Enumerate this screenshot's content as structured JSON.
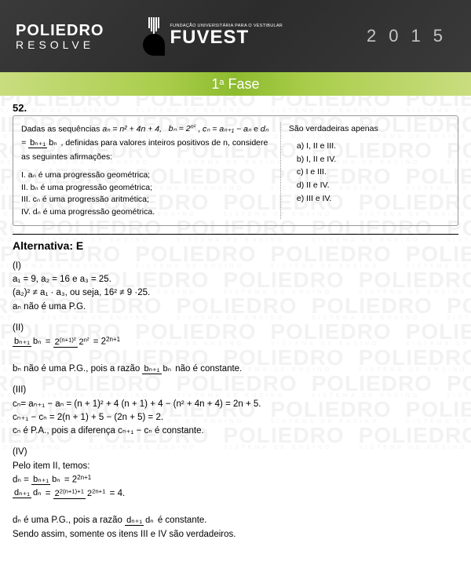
{
  "header": {
    "poliedro_top": "POLIEDRO",
    "poliedro_bottom": "RESOLVE",
    "fuvest_small": "FUNDAÇÃO UNIVERSITÁRIA PARA O VESTIBULAR",
    "fuvest_big": "FUVEST",
    "year": "2015",
    "phase": "1ª Fase"
  },
  "colors": {
    "header_bg": "#2f2f2f",
    "phase_green_light": "#c9dd7f",
    "phase_green_dark": "#8dbb2e",
    "watermark": "rgba(0,0,0,0.05)"
  },
  "question": {
    "number": "52.",
    "stem_parts": {
      "p1": "Dadas as sequências ",
      "seq_a": "aₙ = n² + 4n + 4,",
      "seq_b": "bₙ = 2",
      "seq_b_exp": "n²",
      "p2": ", ",
      "seq_c": "cₙ = aₙ₊₁ − aₙ",
      "p3": " e ",
      "seq_d_left": "dₙ = ",
      "seq_d_num": "bₙ₊₁",
      "seq_d_den": "bₙ",
      "p4": ", definidas para valores inteiros positivos de n, considere as seguintes afirmações:"
    },
    "statements": [
      "I.  aₙ é uma progressão geométrica;",
      "II.  bₙ é uma progressão geométrica;",
      "III.  cₙ é uma progressão aritmética;",
      "IV.  dₙ é uma progressão geométrica."
    ],
    "answers_title": "São verdadeiras apenas",
    "options": [
      "a)  I, II e III.",
      "b)  I, II e IV.",
      "c)  I e III.",
      "d)  II e IV.",
      "e)  III e IV."
    ]
  },
  "solution": {
    "alternative_label": "Alternativa: E",
    "items": {
      "I": {
        "lbl": "(I)",
        "l1": "a₁ = 9, a₂ = 16 e a₃ = 25.",
        "l2": "(a₂)² ≠ a₁ · a₃, ou seja, 16² ≠ 9 ·25.",
        "l3": "aₙ não é uma P.G."
      },
      "II": {
        "lbl": "(II)",
        "f1_num": "bₙ₊₁",
        "f1_den": "bₙ",
        "eq": " = ",
        "f2_num": "2",
        "f2_num_exp": "(n+1)²",
        "f2_den": "2",
        "f2_den_exp": "n²",
        "rhs": " = 2",
        "rhs_exp": "2n+1",
        "concl_a": "bₙ não é uma P.G., pois a razão ",
        "concl_b": " não é constante."
      },
      "III": {
        "lbl": "(III)",
        "l1": "cₙ= aₙ₊₁ − aₙ = (n + 1)² + 4 (n + 1) + 4 − (n² + 4n + 4) = 2n + 5.",
        "l2": "cₙ₊₁ − cₙ = 2(n + 1) + 5 − (2n + 5) = 2.",
        "l3": "cₙ é P.A., pois a diferença cₙ₊₁ − cₙ é constante."
      },
      "IV": {
        "lbl": "(IV)",
        "intro": "Pelo item II, temos:",
        "d_eq_left": "dₙ = ",
        "d_num": "bₙ₊₁",
        "d_den": "bₙ",
        "d_rhs": " = 2",
        "d_rhs_exp": "2n+1",
        "r_left_num": "dₙ₊₁",
        "r_left_den": "dₙ",
        "r_mid": " = ",
        "r_right_num": "2",
        "r_right_num_exp": "2(n+1)+1",
        "r_right_den": "2",
        "r_right_den_exp": "2n+1",
        "r_eq4": " = 4.",
        "concl_a": "dₙ é uma P.G., pois a razão ",
        "concl_num": "dₙ₊₁",
        "concl_den": "dₙ",
        "concl_b": " é constante.",
        "final": "Sendo assim, somente os itens III e IV são verdadeiros."
      }
    }
  },
  "watermark": {
    "big": "POLIEDRO",
    "small": "SISTEMA DE ENSINO"
  }
}
